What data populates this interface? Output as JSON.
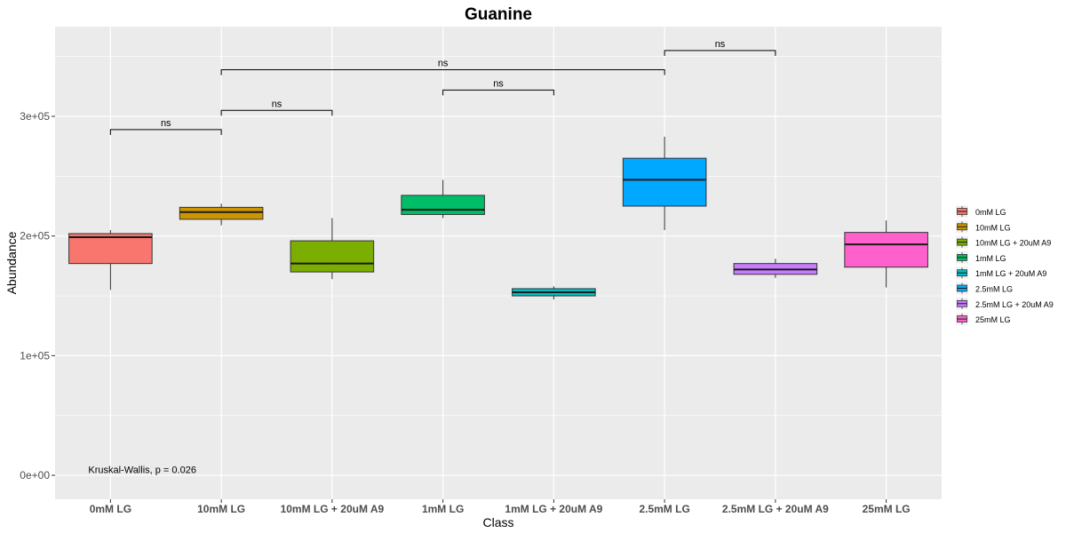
{
  "chart_data": {
    "type": "box",
    "title": "Guanine",
    "xlabel": "Class",
    "ylabel": "Abundance",
    "ylim": [
      -20000,
      375000
    ],
    "yticks": [
      0,
      100000,
      200000,
      300000
    ],
    "ytick_labels": [
      "0e+00",
      "1e+05",
      "2e+05",
      "3e+05"
    ],
    "categories": [
      "0mM LG",
      "10mM LG",
      "10mM LG + 20uM A9",
      "1mM LG",
      "1mM LG + 20uM A9",
      "2.5mM LG",
      "2.5mM LG + 20uM A9",
      "25mM LG"
    ],
    "boxes": [
      {
        "min": 155000,
        "q1": 177000,
        "median": 199000,
        "q3": 202000,
        "max": 205000,
        "color": "#F8766D"
      },
      {
        "min": 209000,
        "q1": 214000,
        "median": 220000,
        "q3": 224000,
        "max": 227000,
        "color": "#CD9600"
      },
      {
        "min": 164000,
        "q1": 170000,
        "median": 177000,
        "q3": 196000,
        "max": 215000,
        "color": "#7CAE00"
      },
      {
        "min": 215000,
        "q1": 218000,
        "median": 222000,
        "q3": 234000,
        "max": 247000,
        "color": "#00BE67"
      },
      {
        "min": 147000,
        "q1": 150000,
        "median": 153000,
        "q3": 156000,
        "max": 158000,
        "color": "#00BFC4"
      },
      {
        "min": 205000,
        "q1": 225000,
        "median": 247000,
        "q3": 265000,
        "max": 283000,
        "color": "#00A9FF"
      },
      {
        "min": 165000,
        "q1": 168000,
        "median": 172000,
        "q3": 177000,
        "max": 181000,
        "color": "#C77CFF"
      },
      {
        "min": 157000,
        "q1": 174000,
        "median": 193000,
        "q3": 203000,
        "max": 213000,
        "color": "#FF61CC"
      }
    ],
    "comparisons": [
      {
        "from": 0,
        "to": 1,
        "y": 289000,
        "label": "ns"
      },
      {
        "from": 1,
        "to": 2,
        "y": 305000,
        "label": "ns"
      },
      {
        "from": 3,
        "to": 4,
        "y": 322000,
        "label": "ns"
      },
      {
        "from": 1,
        "to": 5,
        "y": 339000,
        "label": "ns"
      },
      {
        "from": 5,
        "to": 6,
        "y": 355000,
        "label": "ns"
      }
    ],
    "annotation": {
      "text": "Kruskal-Wallis, p = 0.026",
      "x_category_index": 0,
      "y": 2000
    },
    "legend": {
      "position": "right",
      "entries": [
        "0mM LG",
        "10mM LG",
        "10mM LG + 20uM A9",
        "1mM LG",
        "1mM LG + 20uM A9",
        "2.5mM LG",
        "2.5mM LG + 20uM A9",
        "25mM LG"
      ]
    },
    "grid": true,
    "panel_color": "#EBEBEB",
    "grid_color": "#FFFFFF"
  }
}
